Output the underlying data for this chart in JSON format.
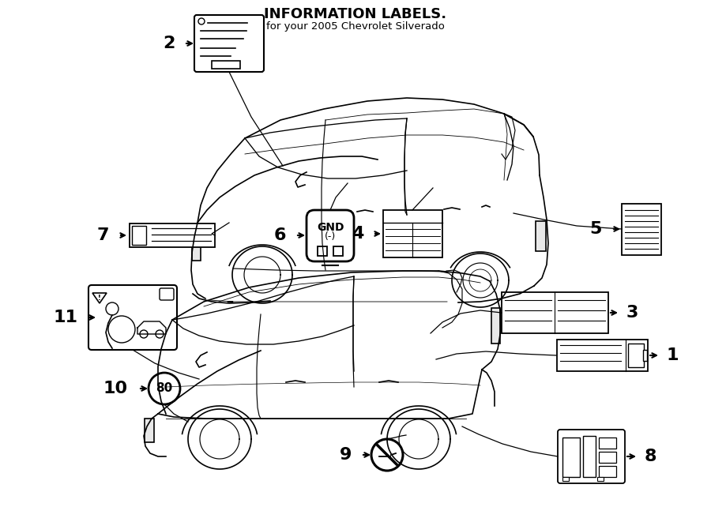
{
  "bg_color": "#ffffff",
  "line_color": "#000000",
  "fig_width": 9.0,
  "fig_height": 6.61,
  "title_top": "INFORMATION LABELS.",
  "subtitle": "for your 2005 Chevrolet Silverado"
}
